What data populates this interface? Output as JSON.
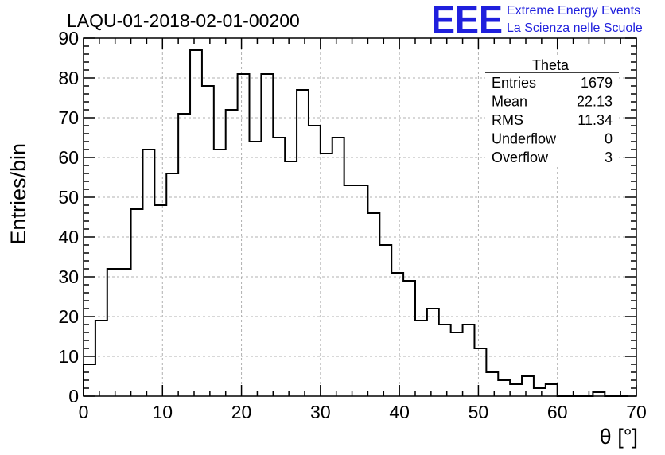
{
  "title": "LAQU-01-2018-02-01-00200",
  "logo": {
    "mark": "EEE",
    "line1": "Extreme Energy Events",
    "line2": "La Scienza nelle Scuole",
    "color": "#1f1fdd"
  },
  "stats": {
    "name": "Theta",
    "rows": [
      {
        "label": "Entries",
        "value": "1679"
      },
      {
        "label": "Mean",
        "value": "22.13"
      },
      {
        "label": "RMS",
        "value": "11.34"
      },
      {
        "label": "Underflow",
        "value": "0"
      },
      {
        "label": "Overflow",
        "value": "3"
      }
    ]
  },
  "chart_data": {
    "type": "bar",
    "histogram": true,
    "title": "LAQU-01-2018-02-01-00200",
    "xlabel": "θ [°]",
    "ylabel": "Entries/bin",
    "xlim": [
      0,
      70
    ],
    "ylim": [
      0,
      90
    ],
    "grid": true,
    "bin_width": 1.5,
    "bin_start": 0,
    "values": [
      8,
      19,
      32,
      32,
      47,
      62,
      48,
      56,
      71,
      87,
      78,
      62,
      72,
      81,
      64,
      81,
      65,
      59,
      77,
      68,
      61,
      65,
      53,
      53,
      46,
      38,
      31,
      29,
      19,
      22,
      18,
      16,
      18,
      12,
      6,
      4,
      3,
      5,
      2,
      3,
      0,
      0,
      0,
      1,
      0,
      0
    ],
    "x_ticks": [
      0,
      10,
      20,
      30,
      40,
      50,
      60,
      70
    ],
    "y_ticks": [
      0,
      10,
      20,
      30,
      40,
      50,
      60,
      70,
      80,
      90
    ],
    "line_color": "#000000"
  }
}
